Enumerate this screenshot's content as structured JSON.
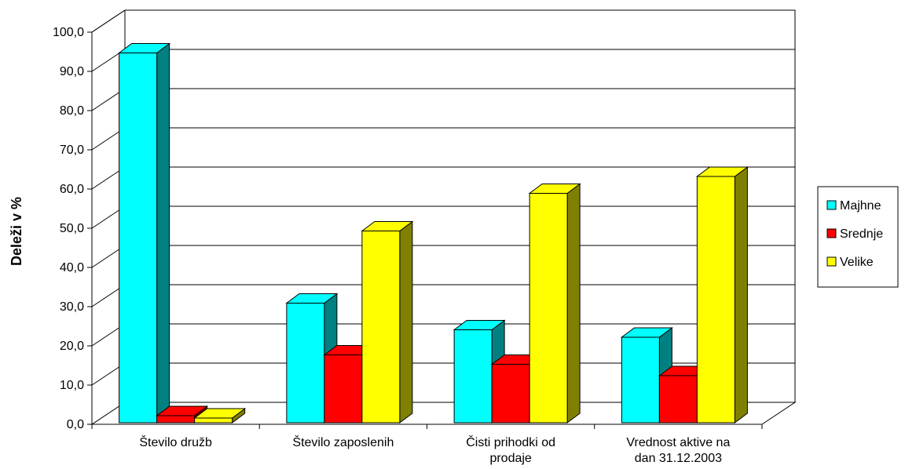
{
  "chart_data": {
    "type": "bar",
    "style": "3d-clustered-column",
    "title": "",
    "xlabel": "",
    "ylabel": "Deleži v %",
    "ylim": [
      0,
      100
    ],
    "yticks": [
      "0,0",
      "10,0",
      "20,0",
      "30,0",
      "40,0",
      "50,0",
      "60,0",
      "70,0",
      "80,0",
      "90,0",
      "100,0"
    ],
    "grid": true,
    "legend_position": "right",
    "categories": [
      [
        "Število družb"
      ],
      [
        "Število zaposlenih"
      ],
      [
        "Čisti prihodki od",
        "prodaje"
      ],
      [
        "Vrednost aktive na",
        "dan 31.12.2003"
      ]
    ],
    "series": [
      {
        "name": "Majhne",
        "color": "#00FFFF",
        "side_color": "#008080",
        "values": [
          94.7,
          30.9,
          24.1,
          22.2
        ]
      },
      {
        "name": "Srednje",
        "color": "#FF0000",
        "side_color": "#800000",
        "values": [
          2.2,
          17.7,
          15.3,
          12.4
        ]
      },
      {
        "name": "Velike",
        "color": "#FFFF00",
        "side_color": "#808000",
        "values": [
          1.6,
          49.3,
          58.9,
          63.2
        ]
      }
    ]
  }
}
